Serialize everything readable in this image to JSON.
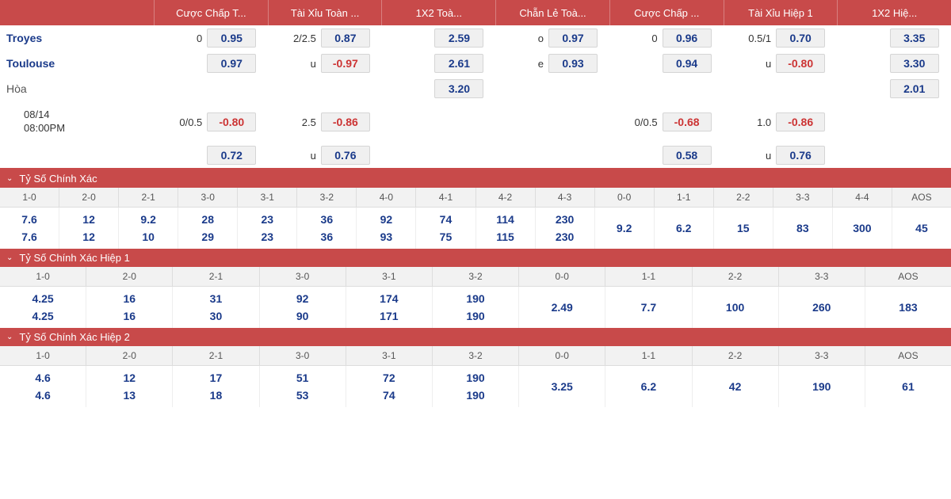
{
  "colors": {
    "header_bg": "#c84a4a",
    "odds_text": "#1a3a8a",
    "neg_text": "#cc3333",
    "cell_bg": "#f0f0f0",
    "cell_border": "#d5d5d5"
  },
  "main": {
    "headers": [
      "Cược Chấp T...",
      "Tài Xỉu Toàn ...",
      "1X2 Toà...",
      "Chẵn Lẻ Toà...",
      "Cược Chấp ...",
      "Tài Xỉu Hiệp 1",
      "1X2 Hiệ..."
    ],
    "rows": [
      {
        "label": "Troyes",
        "cells": [
          {
            "pre": "0",
            "val": "0.95"
          },
          {
            "pre": "2/2.5",
            "val": "0.87"
          },
          {
            "val": "2.59"
          },
          {
            "pre": "o",
            "val": "0.97"
          },
          {
            "pre": "0",
            "val": "0.96"
          },
          {
            "pre": "0.5/1",
            "val": "0.70"
          },
          {
            "val": "3.35"
          }
        ]
      },
      {
        "label": "Toulouse",
        "cells": [
          {
            "val": "0.97"
          },
          {
            "pre": "u",
            "val": "-0.97",
            "neg": true
          },
          {
            "val": "2.61"
          },
          {
            "pre": "e",
            "val": "0.93"
          },
          {
            "val": "0.94"
          },
          {
            "pre": "u",
            "val": "-0.80",
            "neg": true
          },
          {
            "val": "3.30"
          }
        ]
      },
      {
        "label": "Hòa",
        "draw": true,
        "cells": [
          {},
          {},
          {
            "val": "3.20"
          },
          {},
          {},
          {},
          {
            "val": "2.01"
          }
        ]
      },
      {
        "date": "08/14",
        "time": "08:00PM",
        "cells": [
          {
            "pre": "0/0.5",
            "val": "-0.80",
            "neg": true
          },
          {
            "pre": "2.5",
            "val": "-0.86",
            "neg": true
          },
          {},
          {},
          {
            "pre": "0/0.5",
            "val": "-0.68",
            "neg": true
          },
          {
            "pre": "1.0",
            "val": "-0.86",
            "neg": true
          },
          {}
        ]
      },
      {
        "label": "",
        "cells": [
          {
            "val": "0.72"
          },
          {
            "pre": "u",
            "val": "0.76"
          },
          {},
          {},
          {
            "val": "0.58"
          },
          {
            "pre": "u",
            "val": "0.76"
          },
          {}
        ]
      }
    ]
  },
  "sections": [
    {
      "title": "Tỷ Số Chính Xác",
      "cols": [
        "1-0",
        "2-0",
        "2-1",
        "3-0",
        "3-1",
        "3-2",
        "4-0",
        "4-1",
        "4-2",
        "4-3",
        "0-0",
        "1-1",
        "2-2",
        "3-3",
        "4-4",
        "AOS"
      ],
      "rows": [
        [
          "7.6",
          "12",
          "9.2",
          "28",
          "23",
          "36",
          "92",
          "74",
          "114",
          "230",
          null,
          null,
          null,
          null,
          null,
          null
        ],
        [
          "7.6",
          "12",
          "10",
          "29",
          "23",
          "36",
          "93",
          "75",
          "115",
          "230",
          null,
          null,
          null,
          null,
          null,
          null
        ]
      ],
      "singles": [
        null,
        null,
        null,
        null,
        null,
        null,
        null,
        null,
        null,
        null,
        "9.2",
        "6.2",
        "15",
        "83",
        "300",
        "45"
      ]
    },
    {
      "title": "Tỷ Số Chính Xác Hiệp 1",
      "cols": [
        "1-0",
        "2-0",
        "2-1",
        "3-0",
        "3-1",
        "3-2",
        "0-0",
        "1-1",
        "2-2",
        "3-3",
        "AOS"
      ],
      "rows": [
        [
          "4.25",
          "16",
          "31",
          "92",
          "174",
          "190",
          null,
          null,
          null,
          null,
          null
        ],
        [
          "4.25",
          "16",
          "30",
          "90",
          "171",
          "190",
          null,
          null,
          null,
          null,
          null
        ]
      ],
      "singles": [
        null,
        null,
        null,
        null,
        null,
        null,
        "2.49",
        "7.7",
        "100",
        "260",
        "183"
      ]
    },
    {
      "title": "Tỷ Số Chính Xác Hiệp 2",
      "cols": [
        "1-0",
        "2-0",
        "2-1",
        "3-0",
        "3-1",
        "3-2",
        "0-0",
        "1-1",
        "2-2",
        "3-3",
        "AOS"
      ],
      "rows": [
        [
          "4.6",
          "12",
          "17",
          "51",
          "72",
          "190",
          null,
          null,
          null,
          null,
          null
        ],
        [
          "4.6",
          "13",
          "18",
          "53",
          "74",
          "190",
          null,
          null,
          null,
          null,
          null
        ]
      ],
      "singles": [
        null,
        null,
        null,
        null,
        null,
        null,
        "3.25",
        "6.2",
        "42",
        "190",
        "61"
      ]
    }
  ]
}
